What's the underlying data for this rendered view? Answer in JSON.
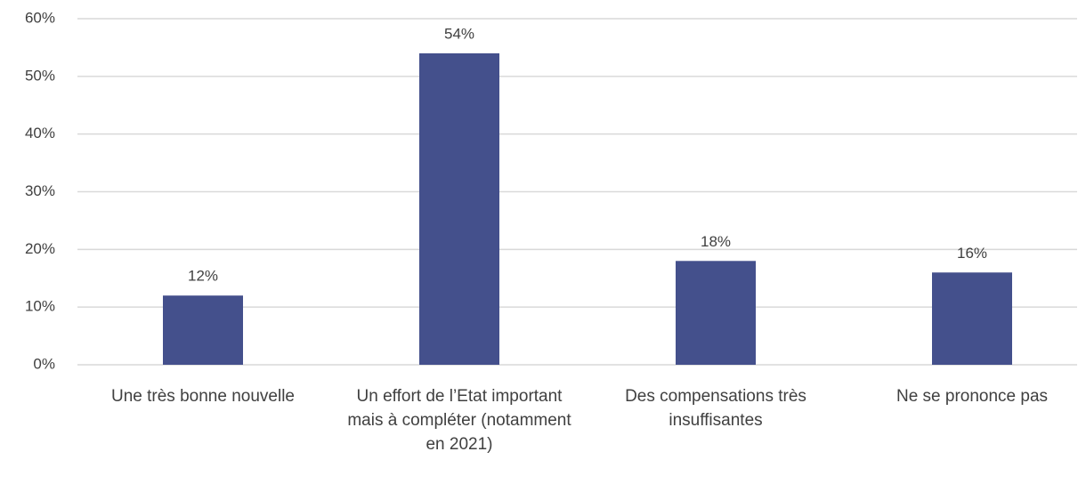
{
  "chart_data": {
    "type": "bar",
    "categories": [
      "Une très bonne nouvelle",
      "Un effort de l’Etat important mais à compléter (notamment en 2021)",
      "Des compensations très insuffisantes",
      "Ne se prononce pas"
    ],
    "values": [
      12,
      54,
      18,
      16
    ],
    "value_labels": [
      "12%",
      "54%",
      "18%",
      "16%"
    ],
    "color": "#44508c",
    "ylim": [
      0,
      60
    ],
    "yticks": [
      {
        "value": 0,
        "label": "0%"
      },
      {
        "value": 10,
        "label": "10%"
      },
      {
        "value": 20,
        "label": "20%"
      },
      {
        "value": 30,
        "label": "30%"
      },
      {
        "value": 40,
        "label": "40%"
      },
      {
        "value": 50,
        "label": "50%"
      },
      {
        "value": 60,
        "label": "60%"
      }
    ],
    "grid": true
  }
}
